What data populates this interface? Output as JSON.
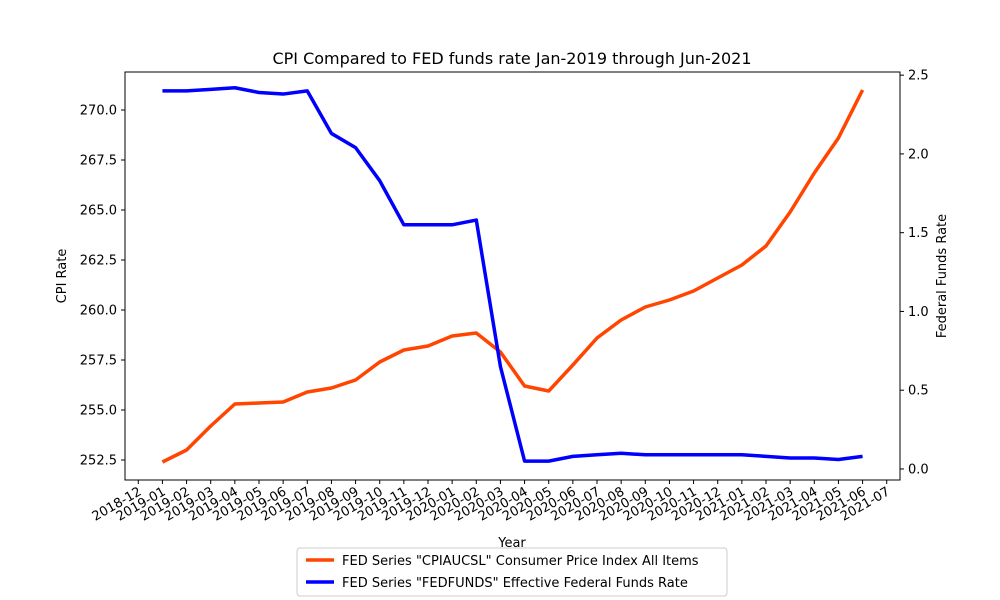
{
  "chart_data": {
    "type": "line",
    "title": "CPI Compared to FED funds rate Jan-2019 through Jun-2021",
    "xlabel": "Year",
    "ylabel_left": "CPI Rate",
    "ylabel_right": "Federal Funds Rate",
    "x_range": [
      "2018-12",
      "2021-07"
    ],
    "ylim_left": [
      251.5,
      271.9
    ],
    "ylim_right": [
      -0.07,
      2.52
    ],
    "grid": false,
    "legend_position": "bottom-center",
    "x_tick_labels": [
      "2018-12",
      "2019-01",
      "2019-02",
      "2019-03",
      "2019-04",
      "2019-05",
      "2019-06",
      "2019-07",
      "2019-08",
      "2019-09",
      "2019-10",
      "2019-11",
      "2019-12",
      "2020-01",
      "2020-02",
      "2020-03",
      "2020-04",
      "2020-05",
      "2020-06",
      "2020-07",
      "2020-08",
      "2020-09",
      "2020-10",
      "2020-11",
      "2020-12",
      "2021-01",
      "2021-02",
      "2021-03",
      "2021-04",
      "2021-05",
      "2021-06",
      "2021-07"
    ],
    "y_left_ticks": [
      "252.5",
      "255.0",
      "257.5",
      "260.0",
      "262.5",
      "265.0",
      "267.5",
      "270.0"
    ],
    "y_right_ticks": [
      "0.0",
      "0.5",
      "1.0",
      "1.5",
      "2.0",
      "2.5"
    ],
    "x": [
      "2019-01",
      "2019-02",
      "2019-03",
      "2019-04",
      "2019-05",
      "2019-06",
      "2019-07",
      "2019-08",
      "2019-09",
      "2019-10",
      "2019-11",
      "2019-12",
      "2020-01",
      "2020-02",
      "2020-03",
      "2020-04",
      "2020-05",
      "2020-06",
      "2020-07",
      "2020-08",
      "2020-09",
      "2020-10",
      "2020-11",
      "2020-12",
      "2021-01",
      "2021-02",
      "2021-03",
      "2021-04",
      "2021-05",
      "2021-06"
    ],
    "series": [
      {
        "name": "FED Series \"CPIAUCSL\" Consumer Price Index All Items",
        "axis": "left",
        "color": "#ff4500",
        "values": [
          252.4,
          253.0,
          254.2,
          255.3,
          255.35,
          255.4,
          255.9,
          256.1,
          256.5,
          257.4,
          258.0,
          258.2,
          258.7,
          258.85,
          257.9,
          256.2,
          255.95,
          257.25,
          258.6,
          259.5,
          260.15,
          260.5,
          260.95,
          261.6,
          262.25,
          263.2,
          264.9,
          266.85,
          268.6,
          271.0
        ]
      },
      {
        "name": "FED Series \"FEDFUNDS\" Effective Federal Funds Rate",
        "axis": "right",
        "color": "#0000ff",
        "values": [
          2.4,
          2.4,
          2.41,
          2.42,
          2.39,
          2.38,
          2.4,
          2.13,
          2.04,
          1.83,
          1.55,
          1.55,
          1.55,
          1.58,
          0.65,
          0.05,
          0.05,
          0.08,
          0.09,
          0.1,
          0.09,
          0.09,
          0.09,
          0.09,
          0.09,
          0.08,
          0.07,
          0.07,
          0.06,
          0.08
        ]
      }
    ]
  }
}
